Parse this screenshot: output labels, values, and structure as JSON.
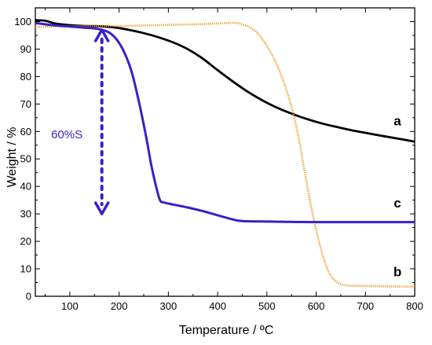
{
  "chart_data": {
    "type": "line",
    "title": "",
    "xlabel": "Temperature / ºC",
    "ylabel": "Weight / %",
    "xlim": [
      30,
      800
    ],
    "ylim": [
      0,
      105
    ],
    "x_ticks": [
      100,
      200,
      300,
      400,
      500,
      600,
      700,
      800
    ],
    "y_ticks": [
      0,
      10,
      20,
      30,
      40,
      50,
      60,
      70,
      80,
      90,
      100
    ],
    "grid": false,
    "series": [
      {
        "name": "a",
        "color": "#000000",
        "style": "solid",
        "x": [
          30,
          50,
          70,
          100,
          130,
          160,
          190,
          220,
          250,
          280,
          310,
          340,
          370,
          400,
          430,
          460,
          490,
          520,
          550,
          580,
          610,
          640,
          670,
          700,
          730,
          760,
          800
        ],
        "y": [
          100.5,
          100.3,
          99.3,
          98.7,
          98.4,
          98.3,
          97.9,
          97.0,
          95.8,
          94.3,
          92.4,
          89.9,
          86.5,
          82.3,
          78.3,
          74.6,
          71.4,
          68.7,
          66.5,
          64.6,
          63.0,
          61.7,
          60.5,
          59.5,
          58.5,
          57.6,
          56.3
        ]
      },
      {
        "name": "b",
        "color": "#f39c2e",
        "style": "dotted",
        "x": [
          30,
          60,
          100,
          150,
          200,
          250,
          300,
          350,
          400,
          430,
          450,
          480,
          510,
          530,
          550,
          565,
          580,
          595,
          610,
          625,
          640,
          660,
          700,
          750,
          800
        ],
        "y": [
          98.0,
          98.2,
          98.3,
          98.4,
          98.4,
          98.6,
          98.8,
          99.0,
          99.3,
          99.5,
          99.0,
          96.0,
          88.0,
          80.0,
          69.0,
          57.0,
          42.0,
          28.0,
          17.0,
          9.0,
          5.5,
          4.0,
          3.8,
          3.6,
          3.5
        ]
      },
      {
        "name": "c",
        "color": "#3a1fcc",
        "style": "solid",
        "x": [
          30,
          60,
          100,
          130,
          150,
          165,
          180,
          195,
          210,
          225,
          240,
          255,
          265,
          275,
          283,
          290,
          310,
          340,
          370,
          400,
          430,
          450,
          500,
          600,
          700,
          800
        ],
        "y": [
          99.5,
          98.8,
          98.2,
          97.8,
          97.5,
          97.0,
          96.0,
          93.5,
          89.0,
          82.0,
          71.0,
          58.0,
          48.0,
          40.0,
          35.0,
          34.2,
          33.4,
          32.3,
          31.0,
          29.5,
          28.0,
          27.4,
          27.2,
          27.0,
          27.0,
          27.0
        ]
      }
    ],
    "curve_labels": [
      {
        "text": "a",
        "x": 765,
        "y": 64
      },
      {
        "text": "c",
        "x": 765,
        "y": 34
      },
      {
        "text": "b",
        "x": 765,
        "y": 9
      }
    ],
    "annotation": {
      "text": "60%S",
      "color": "#3a1fcc",
      "arrow_x": 165,
      "arrow_from": 97,
      "arrow_to": 30,
      "text_x": 62,
      "text_y": 59
    }
  }
}
